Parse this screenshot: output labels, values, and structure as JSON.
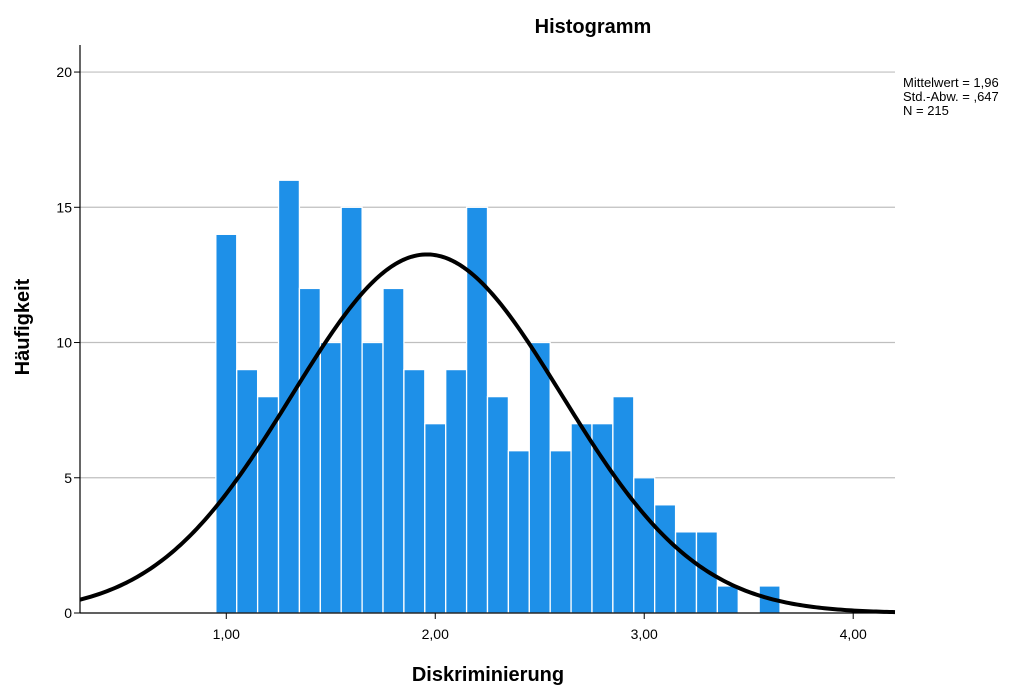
{
  "chart_data": {
    "type": "histogram",
    "title": "Histogramm",
    "xlabel": "Diskriminierung",
    "ylabel": "Häufigkeit",
    "xlim": [
      0.3,
      4.2
    ],
    "ylim": [
      0,
      21
    ],
    "x_ticks": [
      {
        "value": 1,
        "label": "1,00"
      },
      {
        "value": 2,
        "label": "2,00"
      },
      {
        "value": 3,
        "label": "3,00"
      },
      {
        "value": 4,
        "label": "4,00"
      }
    ],
    "y_ticks": [
      {
        "value": 0,
        "label": "0"
      },
      {
        "value": 5,
        "label": "5"
      },
      {
        "value": 10,
        "label": "10"
      },
      {
        "value": 15,
        "label": "15"
      },
      {
        "value": 20,
        "label": "20"
      }
    ],
    "gridlines_y": [
      5,
      10,
      15,
      20
    ],
    "bin_width": 0.1,
    "bins": [
      {
        "start": 0.95,
        "count": 14
      },
      {
        "start": 1.05,
        "count": 9
      },
      {
        "start": 1.15,
        "count": 8
      },
      {
        "start": 1.25,
        "count": 16
      },
      {
        "start": 1.35,
        "count": 12
      },
      {
        "start": 1.45,
        "count": 10
      },
      {
        "start": 1.55,
        "count": 15
      },
      {
        "start": 1.65,
        "count": 10
      },
      {
        "start": 1.75,
        "count": 12
      },
      {
        "start": 1.85,
        "count": 9
      },
      {
        "start": 1.95,
        "count": 7
      },
      {
        "start": 2.05,
        "count": 9
      },
      {
        "start": 2.15,
        "count": 15
      },
      {
        "start": 2.25,
        "count": 8
      },
      {
        "start": 2.35,
        "count": 6
      },
      {
        "start": 2.45,
        "count": 10
      },
      {
        "start": 2.55,
        "count": 6
      },
      {
        "start": 2.65,
        "count": 7
      },
      {
        "start": 2.75,
        "count": 7
      },
      {
        "start": 2.85,
        "count": 8
      },
      {
        "start": 2.95,
        "count": 5
      },
      {
        "start": 3.05,
        "count": 4
      },
      {
        "start": 3.15,
        "count": 3
      },
      {
        "start": 3.25,
        "count": 3
      },
      {
        "start": 3.35,
        "count": 1
      },
      {
        "start": 3.45,
        "count": 0
      },
      {
        "start": 3.55,
        "count": 1
      }
    ],
    "normal_curve": {
      "mean": 1.96,
      "sd": 0.647,
      "n": 215
    },
    "stats": {
      "mean": "Mittelwert = 1,96",
      "sd": "Std.-Abw. = ,647",
      "n": "N = 215"
    },
    "colors": {
      "bar": "#1E90E8",
      "bar_edge": "#ffffff",
      "curve": "#000000",
      "grid": "#bfbfbf",
      "axis": "#000000"
    }
  }
}
